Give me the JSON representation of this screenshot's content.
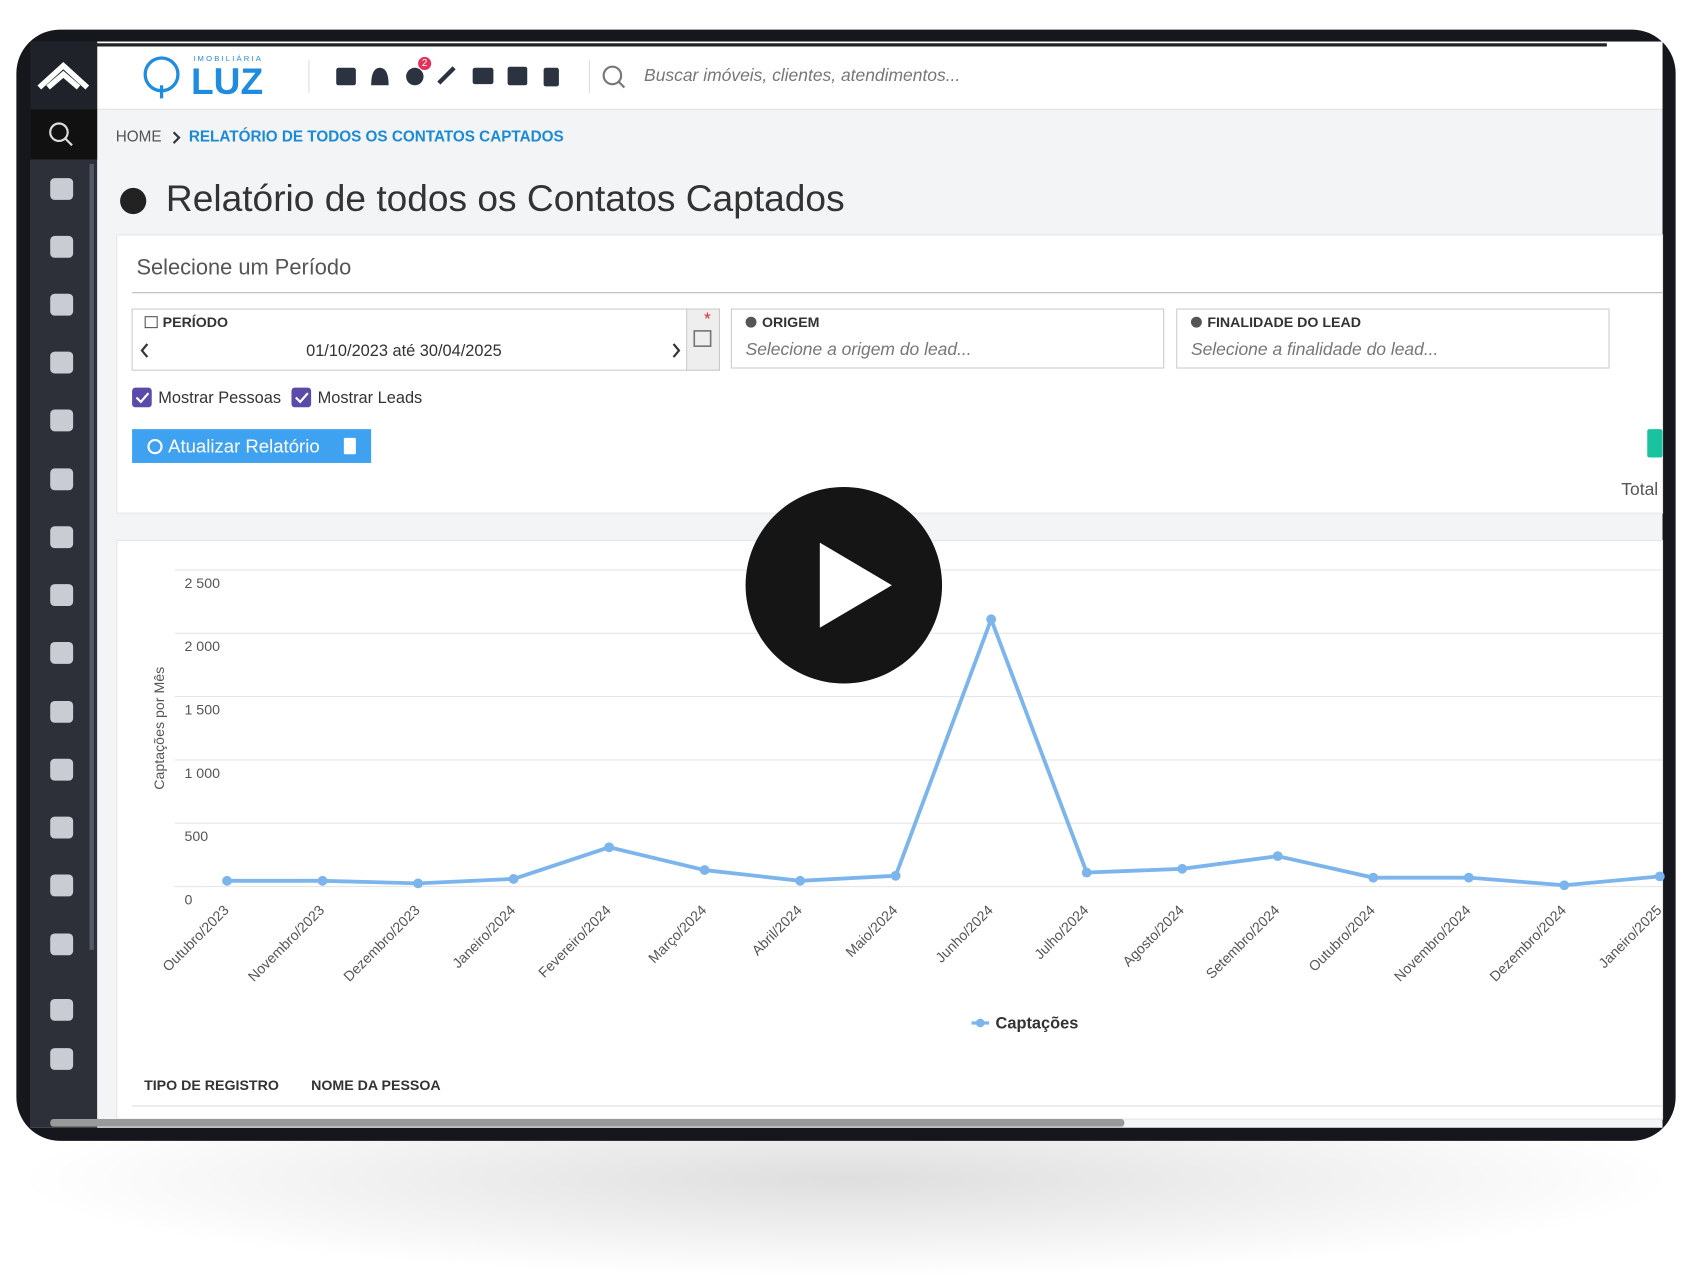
{
  "header": {
    "logo_tagline": "IMOBILIÁRIA",
    "logo_name": "LUZ",
    "notification_badge": "2",
    "search_placeholder": "Buscar imóveis, clientes, atendimentos..."
  },
  "breadcrumb": {
    "home": "HOME",
    "current": "RELATÓRIO DE TODOS OS CONTATOS CAPTADOS"
  },
  "page_title": "Relatório de todos os Contatos Captados",
  "filters": {
    "section_title": "Selecione um Período",
    "period_label": "PERÍODO",
    "period_required": "*",
    "period_value": "01/10/2023 até 30/04/2025",
    "origin_label": "ORIGEM",
    "origin_placeholder": "Selecione a origem do lead...",
    "purpose_label": "FINALIDADE DO LEAD",
    "purpose_placeholder": "Selecione a finalidade do lead...",
    "show_people": "Mostrar Pessoas",
    "show_leads": "Mostrar Leads",
    "update_button": "Atualizar Relatório",
    "total_label": "Total"
  },
  "chart_data": {
    "type": "line",
    "y_label": "Captações por Mês",
    "categories": [
      "Outubro/2023",
      "Novembro/2023",
      "Dezembro/2023",
      "Janeiro/2024",
      "Fevereiro/2024",
      "Março/2024",
      "Abril/2024",
      "Maio/2024",
      "Junho/2024",
      "Julho/2024",
      "Agosto/2024",
      "Setembro/2024",
      "Outubro/2024",
      "Novembro/2024",
      "Dezembro/2024",
      "Janeiro/2025"
    ],
    "series": [
      {
        "name": "Captações",
        "color": "#7cb5ec",
        "values": [
          45,
          45,
          25,
          60,
          310,
          130,
          45,
          85,
          2110,
          110,
          140,
          240,
          70,
          70,
          10,
          80
        ]
      }
    ],
    "ylim": [
      0,
      2500
    ],
    "yticks": [
      0,
      500,
      {
        "value": 1000,
        "label": "1 000"
      },
      {
        "value": 1500,
        "label": "1 500"
      },
      {
        "value": 2000,
        "label": "2 000"
      },
      {
        "value": 2500,
        "label": "2 500"
      }
    ],
    "grid": true,
    "legend": "bottom"
  },
  "table": {
    "headers": [
      "TIPO DE REGISTRO",
      "NOME DA PESSOA"
    ]
  }
}
